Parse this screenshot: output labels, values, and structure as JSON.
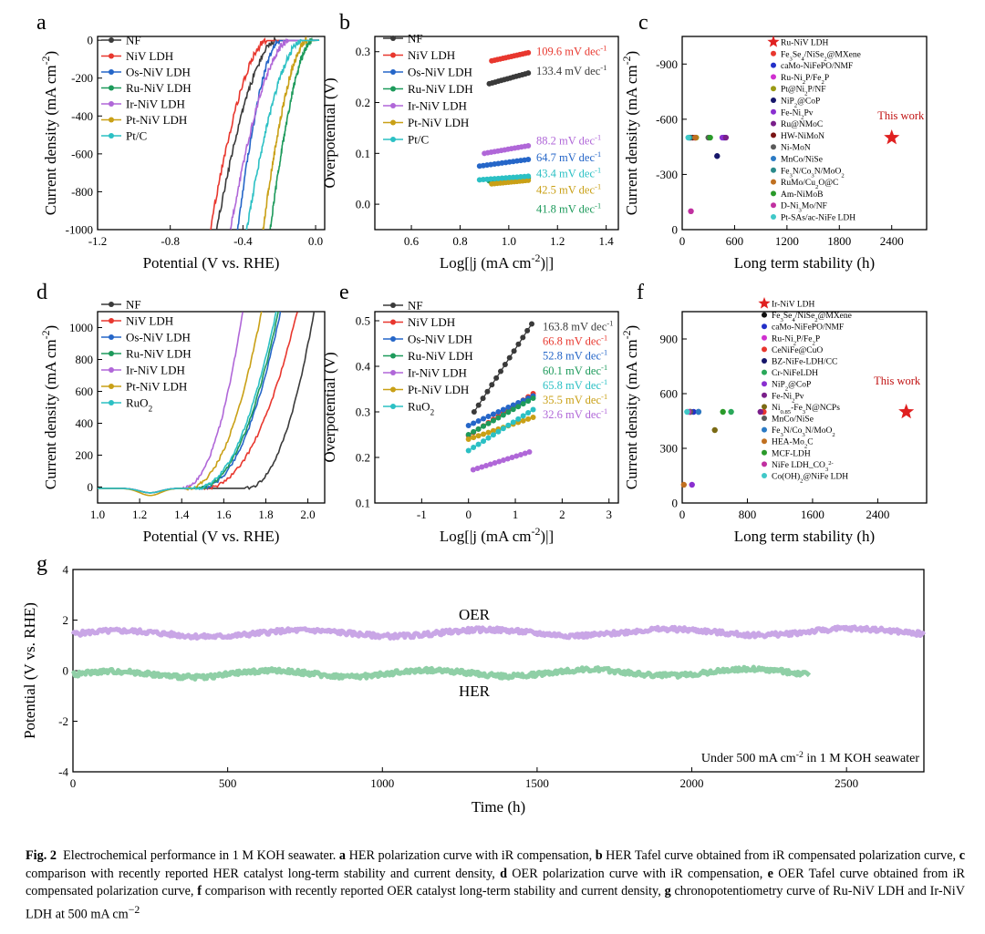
{
  "figure": {
    "caption_label": "Fig. 2",
    "caption_parts": [
      {
        "b": "",
        "t": "Electrochemical performance in 1 M KOH seawater. "
      },
      {
        "b": "a",
        "t": " HER polarization curve with iR compensation, "
      },
      {
        "b": "b",
        "t": " HER Tafel curve obtained from iR compensated polarization curve, "
      },
      {
        "b": "c",
        "t": " comparison with recently reported HER catalyst long-term stability and current density, "
      },
      {
        "b": "d",
        "t": " OER polarization curve with iR compensation, "
      },
      {
        "b": "e",
        "t": " OER Tafel curve obtained from iR compensated polarization curve, "
      },
      {
        "b": "f",
        "t": " comparison with recently reported OER catalyst long-term stability and current density, "
      },
      {
        "b": "g",
        "t": " chronopotentiometry curve of Ru-NiV LDH and Ir-NiV LDH at 500 mA cm"
      }
    ],
    "caption_end_sup": "−2"
  },
  "chart_data": [
    {
      "panel": "a",
      "type": "line",
      "title": "",
      "xlabel": "Potential (V vs. RHE)",
      "ylabel": "Current density (mA cm-2)",
      "xlim": [
        -1.2,
        0.05
      ],
      "ylim": [
        -1000,
        20
      ],
      "xticks": [
        -1.2,
        -0.8,
        -0.4,
        0.0
      ],
      "xtick_labels": [
        "-1.2",
        "-0.8",
        "-0.4",
        "0.0"
      ],
      "yticks": [
        0,
        -200,
        -400,
        -600,
        -800,
        -1000
      ],
      "ytick_labels": [
        "0",
        "-200",
        "-400",
        "-600",
        "-800",
        "-1000"
      ],
      "legend_position": "top-left",
      "series": [
        {
          "name": "NF",
          "color": "#3a3a3a",
          "onset": -0.22,
          "end": -0.545
        },
        {
          "name": "NiV LDH",
          "color": "#e8372e",
          "onset": -0.27,
          "end": -0.58
        },
        {
          "name": "Os-NiV LDH",
          "color": "#2566c8",
          "onset": -0.2,
          "end": -0.43
        },
        {
          "name": "Ru-NiV LDH",
          "color": "#1d9a5b",
          "onset": -0.02,
          "end": -0.25
        },
        {
          "name": "Ir-NiV LDH",
          "color": "#b067d8",
          "onset": -0.15,
          "end": -0.47
        },
        {
          "name": "Pt-NiV LDH",
          "color": "#c9a016",
          "onset": -0.05,
          "end": -0.29
        },
        {
          "name": "Pt/C",
          "color": "#2bc0c4",
          "onset": -0.08,
          "end": -0.38
        }
      ]
    },
    {
      "panel": "b",
      "type": "line",
      "title": "",
      "xlabel": "Log[|j (mA cm-2)|]",
      "ylabel": "Overpotential (V)",
      "xlim": [
        0.45,
        1.45
      ],
      "ylim": [
        -0.05,
        0.33
      ],
      "xticks": [
        0.6,
        0.8,
        1.0,
        1.2,
        1.4
      ],
      "xtick_labels": [
        "0.6",
        "0.8",
        "1.0",
        "1.2",
        "1.4"
      ],
      "yticks": [
        0.0,
        0.1,
        0.2,
        0.3
      ],
      "ytick_labels": [
        "0.0",
        "0.1",
        "0.2",
        "0.3"
      ],
      "legend_position": "top-left",
      "series": [
        {
          "name": "NF",
          "color": "#3a3a3a",
          "x": [
            0.92,
            1.08
          ],
          "y": [
            0.237,
            0.258
          ],
          "annotation": "133.4 mV dec-1",
          "ann_y": 0.262
        },
        {
          "name": "NiV LDH",
          "color": "#e8372e",
          "x": [
            0.93,
            1.08
          ],
          "y": [
            0.282,
            0.298
          ],
          "annotation": "109.6 mV dec-1",
          "ann_y": 0.3
        },
        {
          "name": "Os-NiV LDH",
          "color": "#2566c8",
          "x": [
            0.88,
            1.08
          ],
          "y": [
            0.075,
            0.088
          ],
          "annotation": "64.7 mV dec-1",
          "ann_y": 0.092
        },
        {
          "name": "Ru-NiV LDH",
          "color": "#1d9a5b",
          "x": [
            0.92,
            1.08
          ],
          "y": [
            0.046,
            0.052
          ],
          "annotation": "41.8 mV dec-1",
          "ann_y": -0.01
        },
        {
          "name": "Ir-NiV LDH",
          "color": "#b067d8",
          "x": [
            0.9,
            1.08
          ],
          "y": [
            0.1,
            0.115
          ],
          "annotation": "88.2 mV dec-1",
          "ann_y": 0.125
        },
        {
          "name": "Pt-NiV LDH",
          "color": "#c9a016",
          "x": [
            0.93,
            1.08
          ],
          "y": [
            0.04,
            0.047
          ],
          "annotation": "42.5 mV dec-1",
          "ann_y": 0.028
        },
        {
          "name": "Pt/C",
          "color": "#2bc0c4",
          "x": [
            0.88,
            1.08
          ],
          "y": [
            0.048,
            0.055
          ],
          "annotation": "43.4 mV dec-1",
          "ann_y": 0.06
        }
      ]
    },
    {
      "panel": "c",
      "type": "scatter",
      "title": "",
      "xlabel": "Long term stability (h)",
      "ylabel": "Current density (mA cm-2)",
      "xlim": [
        0,
        2800
      ],
      "ylim": [
        0,
        1050
      ],
      "xticks": [
        0,
        600,
        1200,
        1800,
        2400
      ],
      "xtick_labels": [
        "0",
        "600",
        "1200",
        "1800",
        "2400"
      ],
      "yticks": [
        0,
        300,
        600,
        900
      ],
      "ytick_labels": [
        "0",
        "-300",
        "-600",
        "-900"
      ],
      "legend_position": "top-right",
      "this_work": {
        "label": "This work",
        "x": 2400,
        "y": 500
      },
      "points": [
        {
          "name": "Ru-NiV LDH",
          "color": "#e02020",
          "marker": "star",
          "x": 1200,
          "y": 1000
        },
        {
          "name": "Fe3Se4/NiSe2@MXene",
          "color": "#e8372e",
          "x": 100,
          "y": 500
        },
        {
          "name": "caMo-NiFePO/NMF",
          "color": "#2330c8",
          "x": 480,
          "y": 500
        },
        {
          "name": "Ru-Ni2P/Fe2P",
          "color": "#d030d0",
          "x": 140,
          "y": 500
        },
        {
          "name": "Pt@Ni2P/NF",
          "color": "#9a9a14",
          "x": 160,
          "y": 500
        },
        {
          "name": "NiP2@CoP",
          "color": "#16166a",
          "x": 400,
          "y": 400
        },
        {
          "name": "Fe-Ni2Pv",
          "color": "#8a2fd0",
          "x": 460,
          "y": 500
        },
        {
          "name": "Ru@NMoC",
          "color": "#7a1f8a",
          "x": 500,
          "y": 500
        },
        {
          "name": "HW-NiMoN",
          "color": "#7a1414",
          "x": 120,
          "y": 500
        },
        {
          "name": "Ni-MoN",
          "color": "#5a5a5a",
          "x": 300,
          "y": 500
        },
        {
          "name": "MnCo/NiSe",
          "color": "#2b7ac4",
          "x": 80,
          "y": 500
        },
        {
          "name": "Fe3N/Co3N/MoO2",
          "color": "#2a8a8a",
          "x": 90,
          "y": 500
        },
        {
          "name": "RuMo/Cu2O@C",
          "color": "#c07020",
          "x": 150,
          "y": 500
        },
        {
          "name": "Am-NiMoB",
          "color": "#2a9a2a",
          "x": 320,
          "y": 500
        },
        {
          "name": "D-Ni3Mo/NF",
          "color": "#c030a0",
          "x": 100,
          "y": 100
        },
        {
          "name": "Pt-SAs/ac-NiFe LDH",
          "color": "#40c8c8",
          "x": 70,
          "y": 500
        }
      ]
    },
    {
      "panel": "d",
      "type": "line",
      "title": "",
      "xlabel": "Potential (V vs. RHE)",
      "ylabel": "Current density (mA cm-2)",
      "xlim": [
        1.0,
        2.08
      ],
      "ylim": [
        -100,
        1100
      ],
      "xticks": [
        1.0,
        1.2,
        1.4,
        1.6,
        1.8,
        2.0
      ],
      "xtick_labels": [
        "1.0",
        "1.2",
        "1.4",
        "1.6",
        "1.8",
        "2.0"
      ],
      "yticks": [
        0,
        200,
        400,
        600,
        800,
        1000
      ],
      "ytick_labels": [
        "0",
        "200",
        "400",
        "600",
        "800",
        "1000"
      ],
      "legend_position": "top-left",
      "series": [
        {
          "name": "NF",
          "color": "#3a3a3a",
          "onset": 1.7,
          "end": 2.03
        },
        {
          "name": "NiV LDH",
          "color": "#e8372e",
          "onset": 1.5,
          "end": 1.95
        },
        {
          "name": "Os-NiV LDH",
          "color": "#2566c8",
          "onset": 1.48,
          "end": 1.87
        },
        {
          "name": "Ru-NiV LDH",
          "color": "#1d9a5b",
          "onset": 1.47,
          "end": 1.86
        },
        {
          "name": "Ir-NiV LDH",
          "color": "#b067d8",
          "onset": 1.4,
          "end": 1.69
        },
        {
          "name": "Pt-NiV LDH",
          "color": "#c9a016",
          "onset": 1.42,
          "end": 1.78
        },
        {
          "name": "RuO2",
          "color": "#2bc0c4",
          "onset": 1.46,
          "end": 1.85
        }
      ]
    },
    {
      "panel": "e",
      "type": "line",
      "title": "",
      "xlabel": "Log[|j (mA cm-2)|]",
      "ylabel": "Overpotential (V)",
      "xlim": [
        -2.0,
        3.2
      ],
      "ylim": [
        0.1,
        0.52
      ],
      "xticks": [
        -1,
        0,
        1,
        2,
        3
      ],
      "xtick_labels": [
        "-1",
        "0",
        "1",
        "2",
        "3"
      ],
      "yticks": [
        0.1,
        0.2,
        0.3,
        0.4,
        0.5
      ],
      "ytick_labels": [
        "0.1",
        "0.2",
        "0.3",
        "0.4",
        "0.5"
      ],
      "legend_position": "top-left",
      "series": [
        {
          "name": "NF",
          "color": "#3a3a3a",
          "x": [
            0.12,
            1.35
          ],
          "y": [
            0.3,
            0.493
          ],
          "annotation": "163.8 mV dec-1",
          "ann_y": 0.487
        },
        {
          "name": "NiV LDH",
          "color": "#e8372e",
          "x": [
            0.0,
            1.38
          ],
          "y": [
            0.248,
            0.34
          ],
          "annotation": "66.8 mV dec-1",
          "ann_y": 0.455
        },
        {
          "name": "Os-NiV LDH",
          "color": "#2566c8",
          "x": [
            0.0,
            1.38
          ],
          "y": [
            0.27,
            0.335
          ],
          "annotation": "52.8 mV dec-1",
          "ann_y": 0.423
        },
        {
          "name": "Ru-NiV LDH",
          "color": "#1d9a5b",
          "x": [
            0.0,
            1.38
          ],
          "y": [
            0.25,
            0.33
          ],
          "annotation": "60.1 mV dec-1",
          "ann_y": 0.39
        },
        {
          "name": "Ir-NiV LDH",
          "color": "#b067d8",
          "x": [
            0.1,
            1.3
          ],
          "y": [
            0.173,
            0.212
          ],
          "annotation": "32.6 mV dec-1",
          "ann_y": 0.294
        },
        {
          "name": "Pt-NiV LDH",
          "color": "#c9a016",
          "x": [
            0.0,
            1.38
          ],
          "y": [
            0.24,
            0.288
          ],
          "annotation": "35.5 mV dec-1",
          "ann_y": 0.326
        },
        {
          "name": "RuO2",
          "color": "#2bc0c4",
          "x": [
            0.0,
            1.38
          ],
          "y": [
            0.215,
            0.305
          ],
          "annotation": "65.8 mV dec-1",
          "ann_y": 0.358
        }
      ]
    },
    {
      "panel": "f",
      "type": "scatter",
      "title": "",
      "xlabel": "Long term stability (h)",
      "ylabel": "Current density (mA cm-2)",
      "xlim": [
        0,
        3000
      ],
      "ylim": [
        0,
        1050
      ],
      "xticks": [
        0,
        800,
        1600,
        2400
      ],
      "xtick_labels": [
        "0",
        "800",
        "1600",
        "2400"
      ],
      "yticks": [
        0,
        300,
        600,
        900
      ],
      "ytick_labels": [
        "0",
        "300",
        "600",
        "900"
      ],
      "legend_position": "top-right",
      "this_work": {
        "label": "This work",
        "x": 2750,
        "y": 500
      },
      "points": [
        {
          "name": "Ir-NiV LDH",
          "color": "#e02020",
          "marker": "star",
          "x": 1100,
          "y": 1000
        },
        {
          "name": "Fe3Se4/NiSe2@MXene",
          "color": "#111111",
          "x": 100,
          "y": 500
        },
        {
          "name": "caMo-NiFePO/NMF",
          "color": "#2330c8",
          "x": 140,
          "y": 500
        },
        {
          "name": "Ru-Ni2P/Fe2P",
          "color": "#d030d0",
          "x": 1000,
          "y": 500
        },
        {
          "name": "CeNiFe@CuO",
          "color": "#e8372e",
          "x": 1000,
          "y": 500
        },
        {
          "name": "BZ-NiFe-LDH/CC",
          "color": "#16166a",
          "x": 200,
          "y": 500
        },
        {
          "name": "Cr-NiFeLDH",
          "color": "#2aa85a",
          "x": 600,
          "y": 500
        },
        {
          "name": "NiP2@CoP",
          "color": "#8a2fd0",
          "x": 120,
          "y": 100
        },
        {
          "name": "Fe-Ni2Pv",
          "color": "#7a1f8a",
          "x": 960,
          "y": 500
        },
        {
          "name": "Ni0.85-Fe3N@NCPs",
          "color": "#7a6a14",
          "x": 400,
          "y": 400
        },
        {
          "name": "MnCo/NiSe",
          "color": "#5a5a5a",
          "x": 100,
          "y": 500
        },
        {
          "name": "Fe3N/Co3N/MoO2",
          "color": "#2b7ac4",
          "x": 200,
          "y": 500
        },
        {
          "name": "HEA-Mo2C",
          "color": "#c07020",
          "x": 20,
          "y": 100
        },
        {
          "name": "MCF-LDH",
          "color": "#2a9a2a",
          "x": 500,
          "y": 500
        },
        {
          "name": "NiFe LDH_CO32-",
          "color": "#c030a0",
          "x": 80,
          "y": 500
        },
        {
          "name": "Co(OH)2@NiFe LDH",
          "color": "#40c8c8",
          "x": 60,
          "y": 500
        }
      ]
    },
    {
      "panel": "g",
      "type": "line",
      "title": "",
      "xlabel": "Time (h)",
      "ylabel": "Potential (V vs. RHE)",
      "xlim": [
        0,
        2750
      ],
      "ylim": [
        -4,
        4
      ],
      "xticks": [
        0,
        500,
        1000,
        1500,
        2000,
        2500
      ],
      "xtick_labels": [
        "0",
        "500",
        "1000",
        "1500",
        "2000",
        "2500"
      ],
      "yticks": [
        4,
        2,
        0,
        -2,
        -4
      ],
      "ytick_labels": [
        "4",
        "2",
        "0",
        "-2",
        "-4"
      ],
      "annotations": [
        "OER",
        "HER",
        "Under 500 mA cm-2 in 1 M KOH seawater"
      ],
      "series": [
        {
          "name": "OER (Ir-NiV LDH)",
          "color": "#c9a6e6",
          "x": [
            0,
            2750
          ],
          "y": [
            1.45,
            1.55
          ]
        },
        {
          "name": "HER (Ru-NiV LDH)",
          "color": "#8fcfa6",
          "x": [
            0,
            2380
          ],
          "y": [
            -0.15,
            -0.05
          ]
        }
      ]
    }
  ]
}
